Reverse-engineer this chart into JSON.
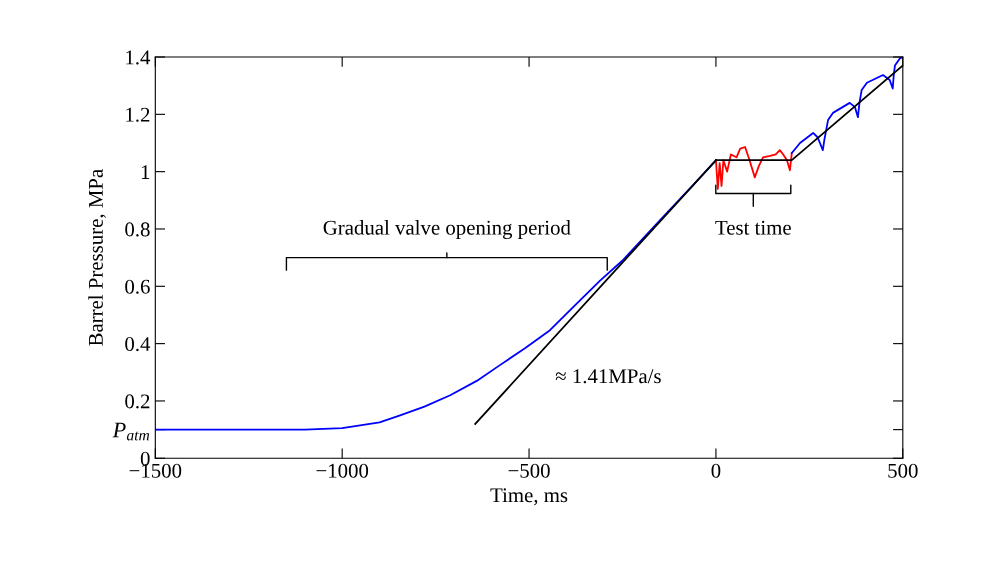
{
  "chart_data": {
    "type": "line",
    "xlabel": "Time, ms",
    "ylabel": "Barrel Pressure, MPa",
    "xlim": [
      -1500,
      500
    ],
    "ylim": [
      0,
      1.4
    ],
    "xticks": [
      {
        "value": -1500,
        "label": "−1500"
      },
      {
        "value": -1000,
        "label": "−1000"
      },
      {
        "value": -500,
        "label": "−500"
      },
      0,
      500
    ],
    "yticks": [
      0,
      {
        "value": 0.1,
        "label": "P$_{atm}$"
      },
      0.2,
      0.4,
      0.6,
      0.8,
      1,
      1.2,
      1.4
    ],
    "grid": false,
    "legend": false,
    "marker": "none",
    "line_style": "solid",
    "series": [
      {
        "color": "#0000ff",
        "x": [
          -1500,
          -1300,
          -1100,
          -1000,
          -900,
          -845,
          -780,
          -711,
          -640,
          -578,
          -510,
          -444,
          -380,
          -310,
          -250,
          -150,
          -60,
          0
        ],
        "values": [
          0.1,
          0.1,
          0.1,
          0.105,
          0.125,
          0.15,
          0.18,
          0.22,
          0.27,
          0.325,
          0.385,
          0.447,
          0.53,
          0.62,
          0.69,
          0.83,
          0.955,
          1.04
        ]
      },
      {
        "color": "#ff0000",
        "x": [
          0,
          5,
          10,
          15,
          20,
          30,
          40,
          55,
          65,
          78,
          90,
          104,
          115,
          126,
          145,
          160,
          171,
          180,
          190,
          198,
          203
        ],
        "values": [
          1.04,
          0.94,
          1.03,
          0.95,
          1.04,
          1.0,
          1.06,
          1.05,
          1.08,
          1.086,
          1.04,
          0.98,
          1.02,
          1.05,
          1.055,
          1.06,
          1.075,
          1.06,
          1.04,
          1.005,
          1.065
        ]
      },
      {
        "color": "#0000ff",
        "x": [
          203,
          225,
          260,
          272,
          286,
          290,
          300,
          313,
          358,
          372,
          380,
          384,
          390,
          404,
          447,
          465,
          473,
          476,
          479,
          492,
          500
        ],
        "values": [
          1.065,
          1.1,
          1.135,
          1.12,
          1.075,
          1.11,
          1.18,
          1.205,
          1.24,
          1.225,
          1.19,
          1.24,
          1.285,
          1.31,
          1.337,
          1.32,
          1.29,
          1.34,
          1.37,
          1.395,
          1.4
        ]
      },
      {
        "color": "#000000",
        "x": [
          -644,
          0
        ],
        "values": [
          0.12,
          1.04
        ]
      },
      {
        "color": "#000000",
        "x": [
          0,
          203,
          500
        ],
        "values": [
          1.04,
          1.04,
          1.37
        ]
      }
    ],
    "annotations": [
      "Gradual valve opening period",
      "Test time",
      "≈ 1.41MPa/s"
    ]
  }
}
